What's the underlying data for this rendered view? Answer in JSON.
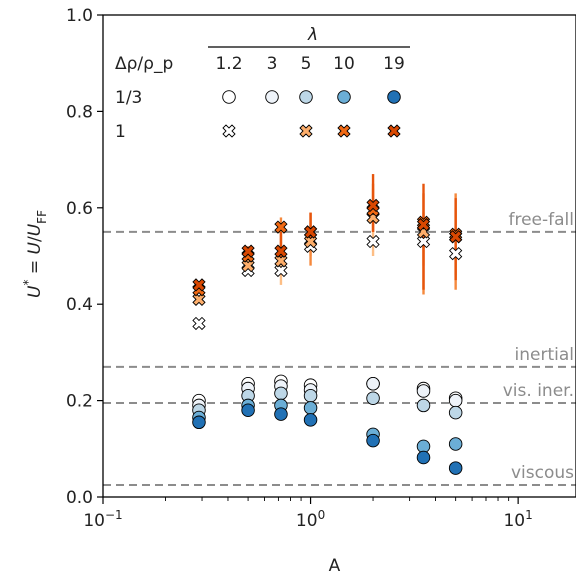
{
  "chart_data": {
    "type": "scatter",
    "xlabel": "A",
    "ylabel": "U* = U/U_FF",
    "xscale": "log",
    "xlim": [
      0.1,
      19
    ],
    "ylim": [
      0.0,
      1.0
    ],
    "x_ticks": [
      {
        "value": 0.1,
        "mantissa": "10",
        "exp": "−1"
      },
      {
        "value": 1,
        "mantissa": "10",
        "exp": "0"
      },
      {
        "value": 10,
        "mantissa": "10",
        "exp": "1"
      }
    ],
    "y_ticks": [
      "0.0",
      "0.2",
      "0.4",
      "0.6",
      "0.8",
      "1.0"
    ],
    "grid": false,
    "legend": {
      "placement": "top-left",
      "column_title": "λ",
      "row_title": "Δρ/ρ_p",
      "columns": [
        "1.2",
        "3",
        "5",
        "10",
        "19"
      ],
      "rows": [
        {
          "label": "1/3",
          "marker": "circle"
        },
        {
          "label": "1",
          "marker": "x"
        }
      ]
    },
    "reference_lines": [
      {
        "label": "free-fall",
        "y": 0.55
      },
      {
        "label": "inertial",
        "y": 0.27
      },
      {
        "label": "vis. iner.",
        "y": 0.195
      },
      {
        "label": "viscous",
        "y": 0.025
      }
    ],
    "colors": {
      "circle": {
        "1.2": "#ffffff",
        "3": "#eef3f9",
        "5": "#bdd7e7",
        "10": "#6baed6",
        "19": "#2171b5"
      },
      "x": {
        "1.2": "#ffffff",
        "5": "#fdae6b",
        "10": "#f16913",
        "19": "#d94801"
      },
      "x_errorbar": {
        "5": "#fdbe85",
        "10": "#f5893d",
        "19": "#e6550d"
      },
      "reference_line": "#8c8c8c"
    },
    "series": [
      {
        "name": "1/3, λ=1.2",
        "marker": "circle",
        "lambda": "1.2",
        "x": [
          0.29,
          0.5,
          0.72,
          1.0,
          2.0,
          3.5,
          5.0
        ],
        "y": [
          0.2,
          0.235,
          0.24,
          0.232,
          0.235,
          0.225,
          0.205
        ]
      },
      {
        "name": "1/3, λ=3",
        "marker": "circle",
        "lambda": "3",
        "x": [
          0.29,
          0.5,
          0.72,
          1.0,
          2.0,
          3.5,
          5.0
        ],
        "y": [
          0.19,
          0.225,
          0.23,
          0.222,
          0.235,
          0.22,
          0.2
        ]
      },
      {
        "name": "1/3, λ=5",
        "marker": "circle",
        "lambda": "5",
        "x": [
          0.29,
          0.5,
          0.72,
          1.0,
          2.0,
          3.5,
          5.0
        ],
        "y": [
          0.18,
          0.21,
          0.215,
          0.21,
          0.205,
          0.19,
          0.175
        ]
      },
      {
        "name": "1/3, λ=10",
        "marker": "circle",
        "lambda": "10",
        "x": [
          0.29,
          0.5,
          0.72,
          1.0,
          2.0,
          3.5,
          5.0
        ],
        "y": [
          0.165,
          0.19,
          0.19,
          0.185,
          0.13,
          0.105,
          0.11
        ]
      },
      {
        "name": "1/3, λ=19",
        "marker": "circle",
        "lambda": "19",
        "x": [
          0.29,
          0.5,
          0.72,
          1.0,
          2.0,
          3.5,
          5.0
        ],
        "y": [
          0.155,
          0.18,
          0.172,
          0.16,
          0.117,
          0.082,
          0.06
        ]
      },
      {
        "name": "1, λ=1.2",
        "marker": "x",
        "lambda": "1.2",
        "x": [
          0.29,
          0.5,
          0.72,
          1.0,
          2.0,
          3.5,
          5.0
        ],
        "y": [
          0.36,
          0.47,
          0.47,
          0.52,
          0.53,
          0.53,
          0.505
        ]
      },
      {
        "name": "1, λ=5",
        "marker": "x",
        "lambda": "5",
        "x": [
          0.29,
          0.5,
          0.72,
          1.0,
          2.0,
          3.5,
          5.0
        ],
        "y": [
          0.41,
          0.48,
          0.49,
          0.53,
          0.58,
          0.55,
          0.54
        ],
        "error": [
          [
            0.41,
            0.41
          ],
          [
            0.47,
            0.49
          ],
          [
            0.44,
            0.52
          ],
          [
            0.5,
            0.56
          ],
          [
            0.5,
            0.64
          ],
          [
            0.48,
            0.59
          ],
          [
            0.46,
            0.6
          ]
        ]
      },
      {
        "name": "1, λ=10",
        "marker": "x",
        "lambda": "10",
        "x": [
          0.29,
          0.5,
          0.72,
          1.0,
          2.0,
          3.5,
          5.0
        ],
        "y": [
          0.43,
          0.5,
          0.56,
          0.55,
          0.595,
          0.57,
          0.545
        ],
        "error": [
          [
            0.43,
            0.43
          ],
          [
            0.49,
            0.51
          ],
          [
            0.52,
            0.58
          ],
          [
            0.48,
            0.59
          ],
          [
            0.55,
            0.65
          ],
          [
            0.42,
            0.63
          ],
          [
            0.43,
            0.63
          ]
        ]
      },
      {
        "name": "1, λ=19",
        "marker": "x",
        "lambda": "19",
        "x": [
          0.29,
          0.5,
          0.72,
          1.0,
          2.0,
          3.5,
          5.0
        ],
        "y": [
          0.44,
          0.51,
          0.51,
          0.55,
          0.605,
          0.565,
          0.54
        ],
        "error": [
          [
            0.44,
            0.44
          ],
          [
            0.5,
            0.52
          ],
          [
            0.49,
            0.55
          ],
          [
            0.52,
            0.59
          ],
          [
            0.55,
            0.67
          ],
          [
            0.43,
            0.65
          ],
          [
            0.45,
            0.62
          ]
        ]
      }
    ]
  }
}
